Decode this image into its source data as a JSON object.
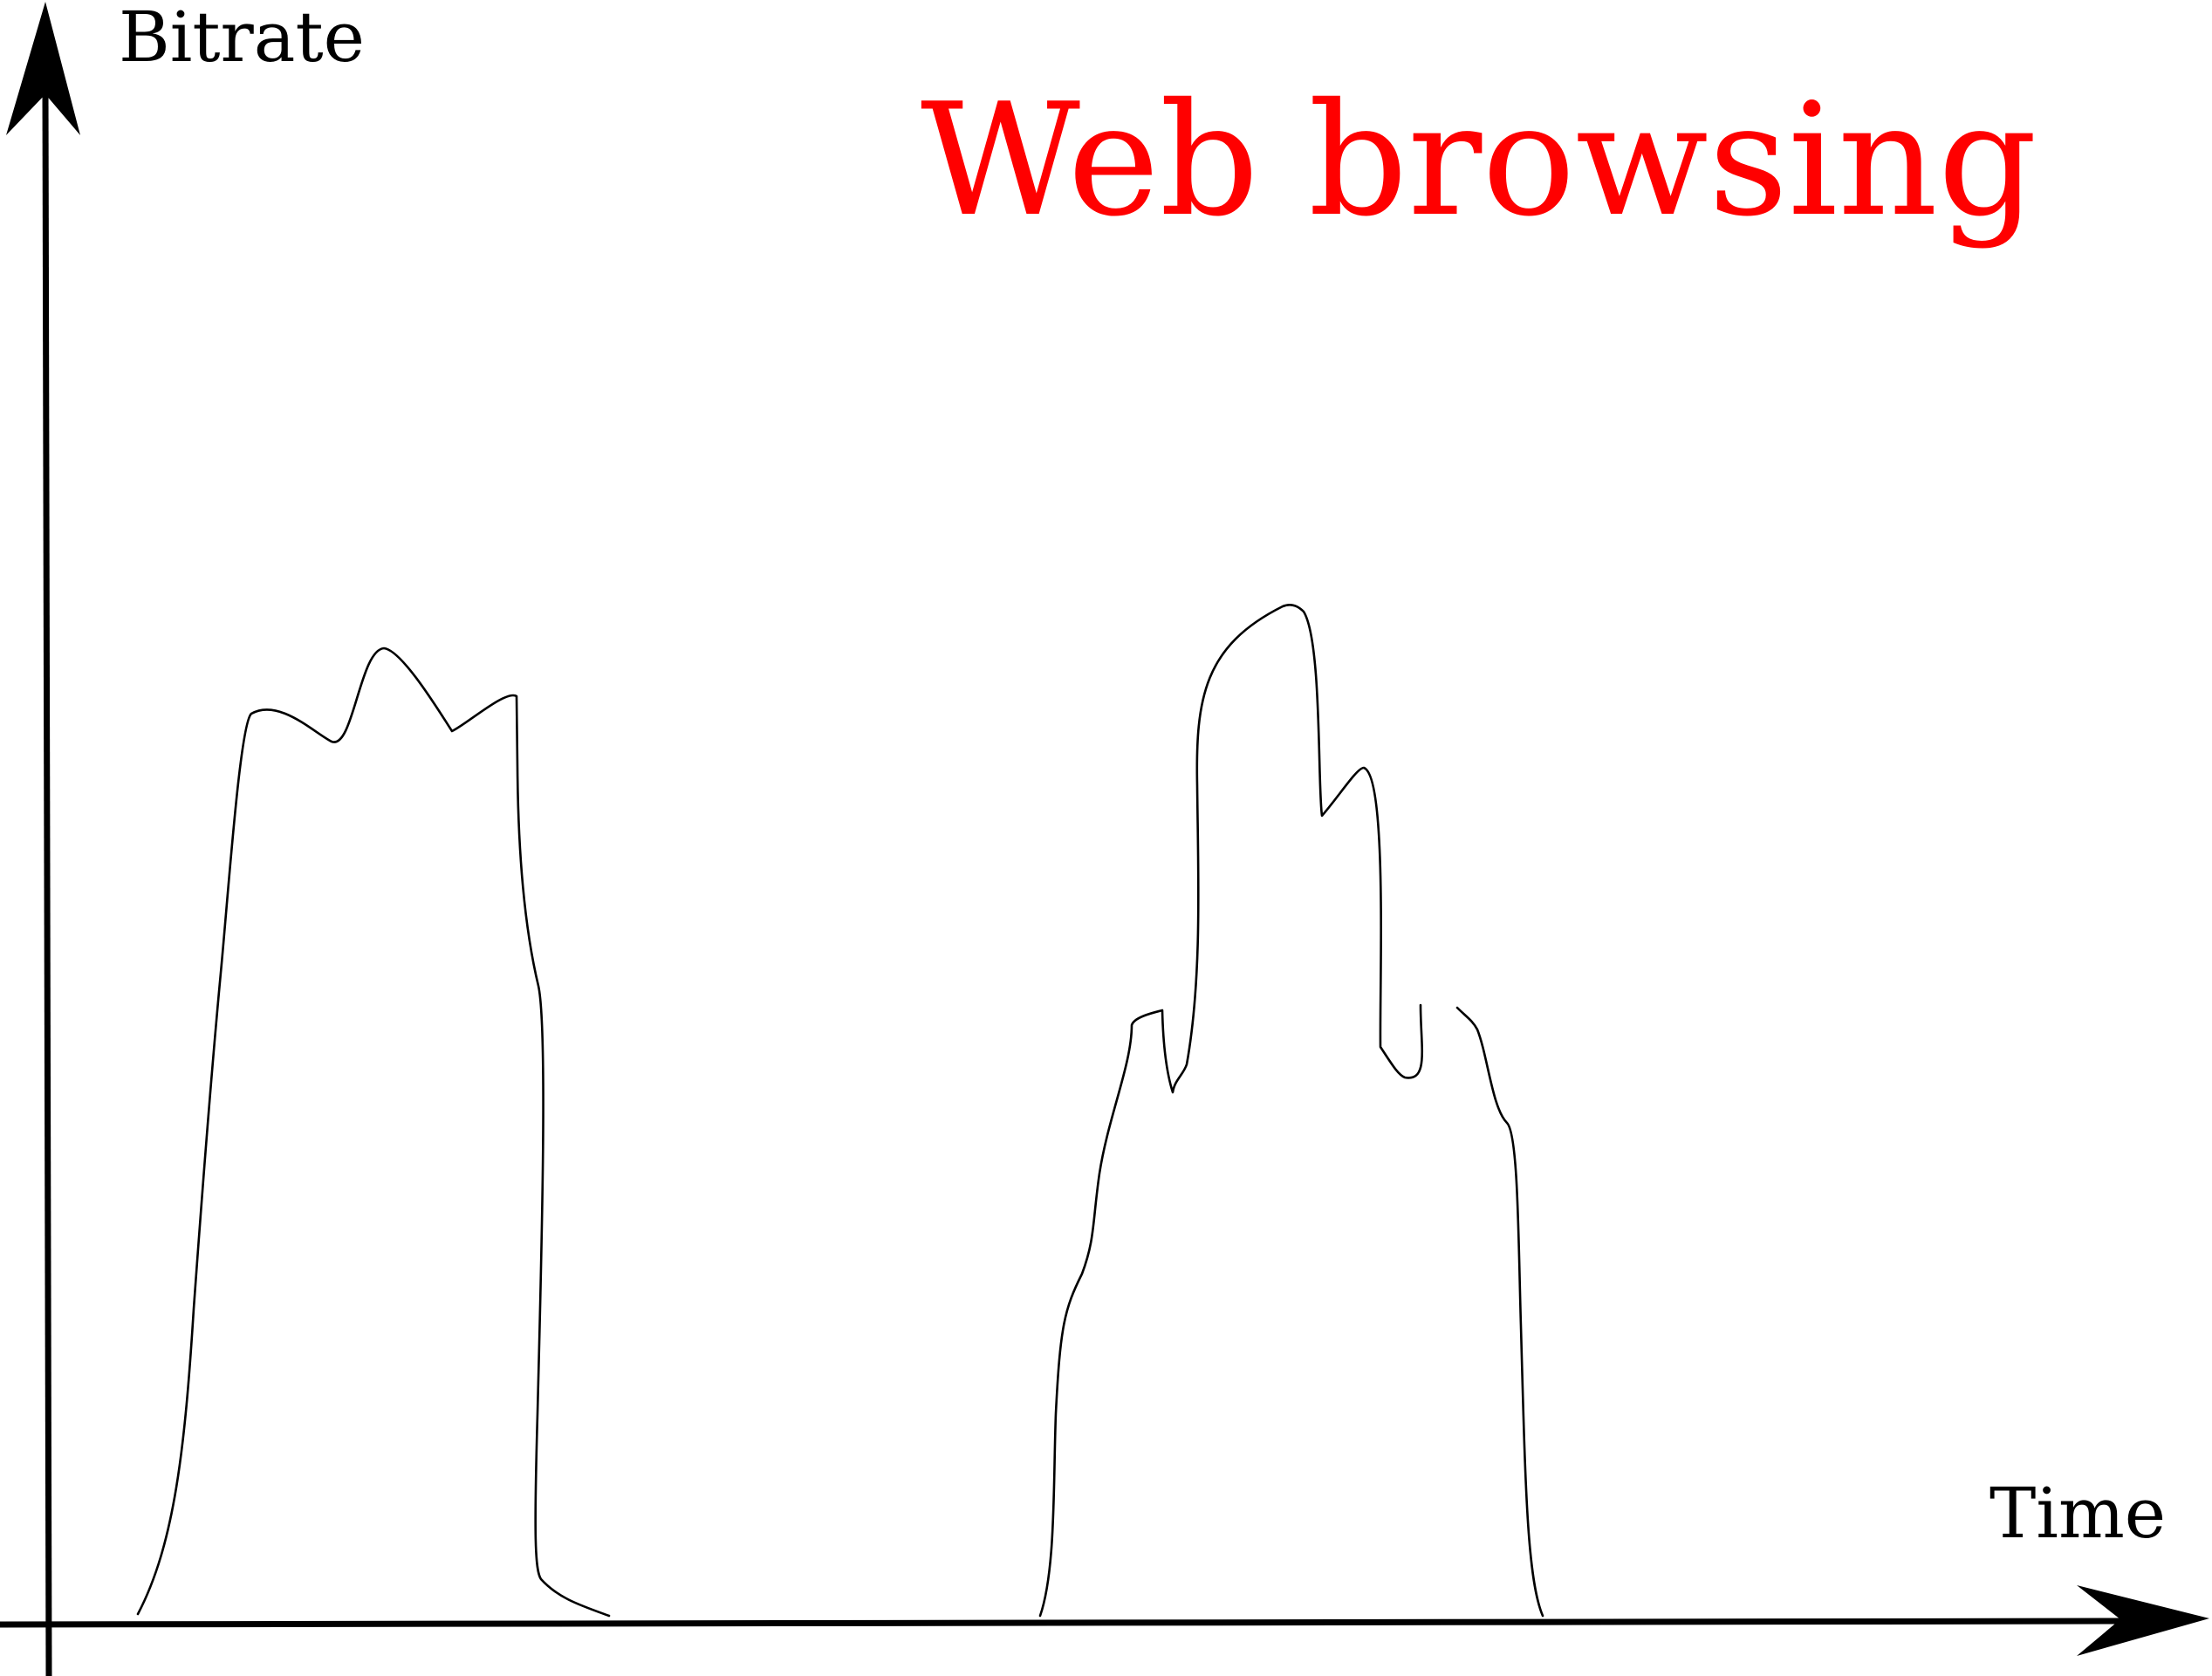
{
  "diagram": {
    "title": "Web browsing",
    "title_color": "#ff0000",
    "y_axis_label": "Bitrate",
    "x_axis_label": "Time",
    "line_color": "#000000",
    "background": "#ffffff"
  }
}
